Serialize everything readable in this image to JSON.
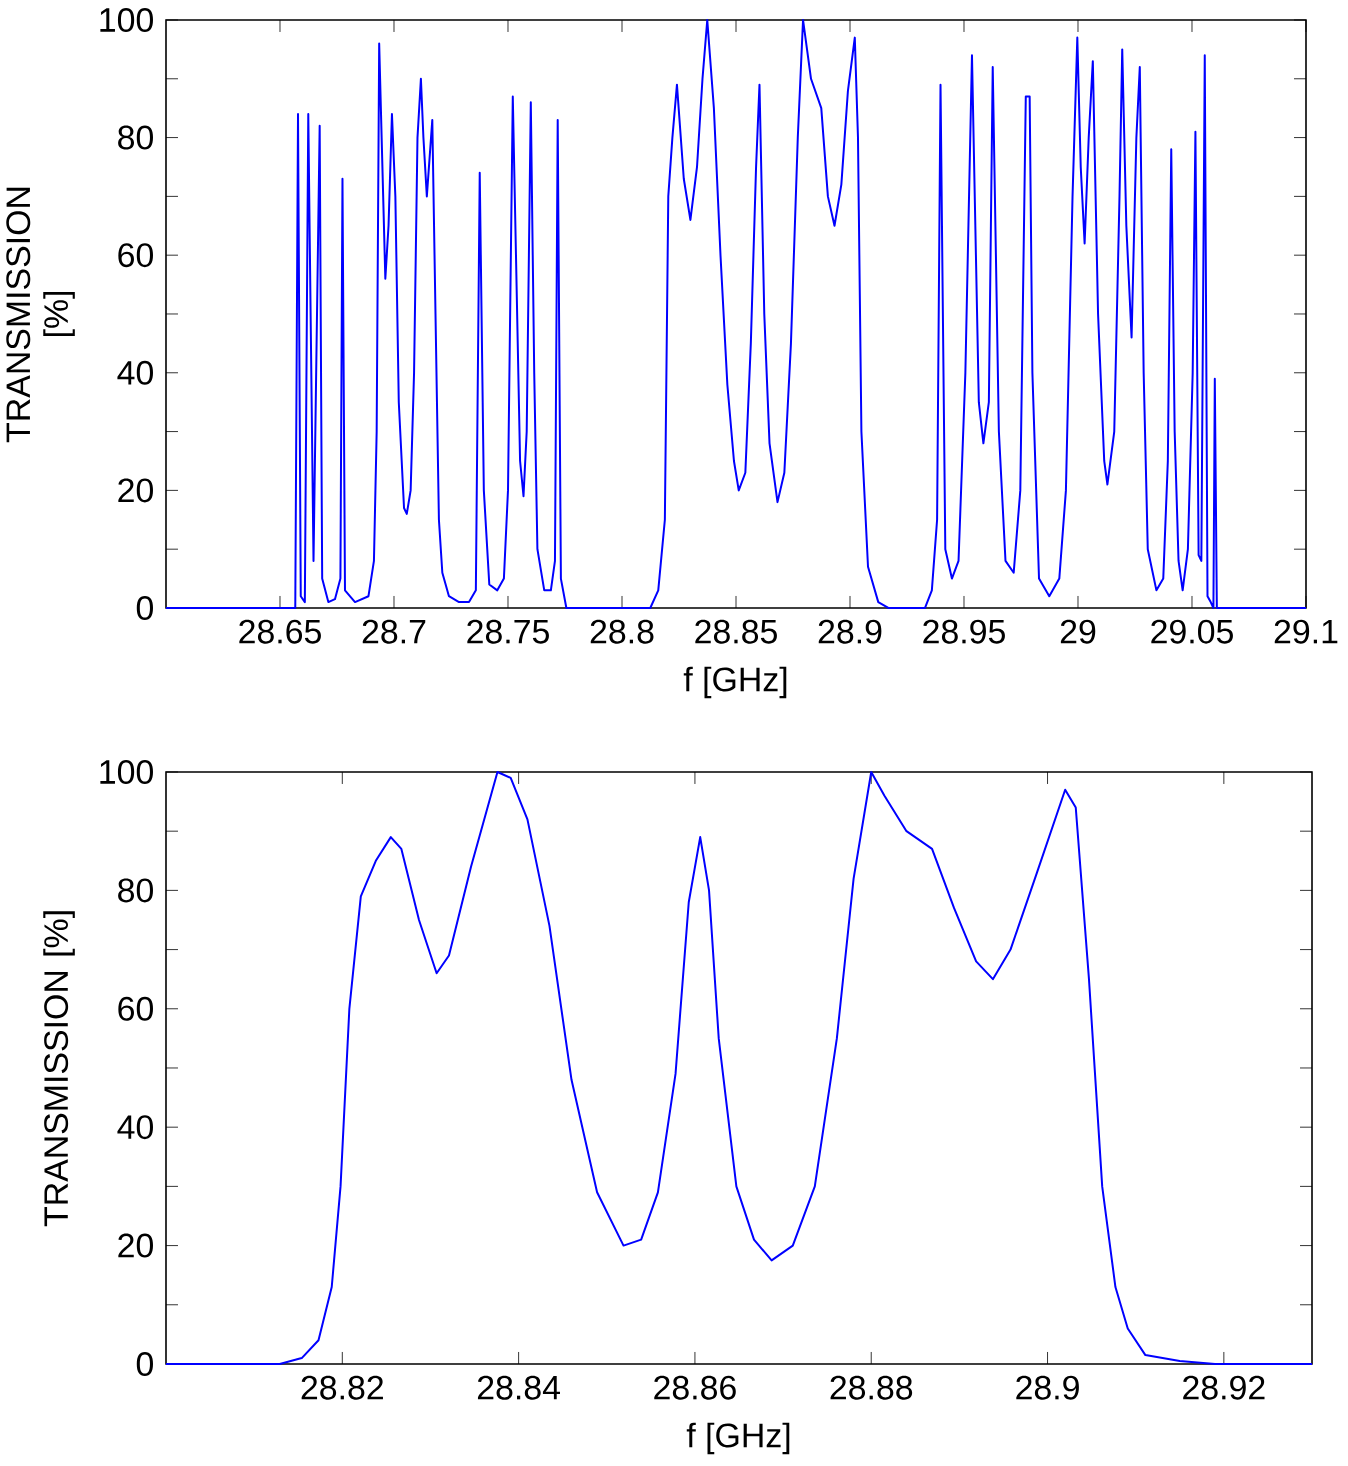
{
  "chart_data": [
    {
      "type": "line",
      "xlabel": "f [GHz]",
      "ylabel": "TRANSMISSION [%]",
      "xlim": [
        28.6,
        29.1
      ],
      "ylim": [
        0,
        100
      ],
      "xticks": [
        28.65,
        28.7,
        28.75,
        28.8,
        28.85,
        28.9,
        28.95,
        29,
        29.05,
        29.1
      ],
      "yticks": [
        0,
        {
          "value": 10,
          "label": null
        },
        20,
        {
          "value": 30,
          "label": null
        },
        40,
        {
          "value": 50,
          "label": null
        },
        60,
        {
          "value": 70,
          "label": null
        },
        80,
        {
          "value": 90,
          "label": null
        },
        100
      ],
      "marker": "none",
      "line_style": "solid",
      "grid": false,
      "x": [
        28.6,
        28.655,
        28.6567,
        28.6579,
        28.6591,
        28.6609,
        28.6624,
        28.6647,
        28.6674,
        28.6685,
        28.6712,
        28.6741,
        28.6765,
        28.6774,
        28.6785,
        28.6829,
        28.6888,
        28.6912,
        28.6924,
        28.6935,
        28.6962,
        28.6976,
        28.6991,
        28.7006,
        28.7021,
        28.7044,
        28.7056,
        28.7073,
        28.7088,
        28.7103,
        28.7118,
        28.7129,
        28.7144,
        28.7168,
        28.7182,
        28.7197,
        28.7212,
        28.7241,
        28.7285,
        28.7329,
        28.7359,
        28.7376,
        28.7394,
        28.7418,
        28.7453,
        28.7482,
        28.75,
        28.7521,
        28.7535,
        28.7553,
        28.7568,
        28.7582,
        28.76,
        28.7615,
        28.7629,
        28.7659,
        28.7688,
        28.7706,
        28.7718,
        28.7732,
        28.7756,
        28.8124,
        28.8159,
        28.8188,
        28.8203,
        28.8221,
        28.8241,
        28.8271,
        28.83,
        28.8329,
        28.8353,
        28.8374,
        28.8403,
        28.8432,
        28.8462,
        28.8491,
        28.8512,
        28.8541,
        28.8565,
        28.8588,
        28.8603,
        28.8624,
        28.8647,
        28.8682,
        28.8712,
        28.8741,
        28.8771,
        28.8794,
        28.8829,
        28.8874,
        28.8903,
        28.8932,
        28.8962,
        28.8991,
        28.9021,
        28.9035,
        28.905,
        28.9079,
        28.9124,
        28.9168,
        28.9329,
        28.9359,
        28.9382,
        28.9397,
        28.9418,
        28.9447,
        28.9476,
        28.9506,
        28.9535,
        28.9565,
        28.9585,
        28.9609,
        28.9626,
        28.9653,
        28.9682,
        28.9718,
        28.9747,
        28.9771,
        28.9788,
        28.98,
        28.9829,
        28.9874,
        28.9918,
        28.9947,
        28.9976,
        28.9997,
        29.0012,
        29.0029,
        29.0047,
        29.0065,
        29.0088,
        29.0115,
        29.0129,
        29.0159,
        29.0182,
        29.0194,
        29.0212,
        29.0235,
        29.0256,
        29.0271,
        29.0288,
        29.0306,
        29.0344,
        29.0374,
        29.0394,
        29.0409,
        29.0424,
        29.0441,
        29.0459,
        29.0482,
        29.0503,
        29.0515,
        29.0529,
        29.0541,
        29.0556,
        29.0568,
        29.0582,
        29.0594,
        29.06,
        29.0609,
        29.1
      ],
      "series": [
        {
          "color": "#0000ff",
          "values": [
            0,
            0,
            0,
            84,
            2,
            1,
            84,
            8,
            82,
            5,
            1,
            1.5,
            5,
            73,
            3,
            1,
            2,
            8,
            30,
            96,
            56,
            65,
            84,
            70,
            35,
            17,
            16,
            20,
            40,
            80,
            90,
            80,
            70,
            83,
            50,
            15,
            6,
            2,
            1,
            1,
            3,
            74,
            20,
            4,
            3,
            5,
            20,
            87,
            60,
            25,
            19,
            30,
            86,
            40,
            10,
            3,
            3,
            8,
            83,
            5,
            0,
            0,
            3,
            15,
            70,
            80,
            89,
            73,
            66,
            75,
            90,
            100,
            85,
            60,
            38,
            25,
            20,
            23,
            45,
            75,
            89,
            50,
            28,
            18,
            23,
            45,
            80,
            100,
            90,
            85,
            70,
            65,
            72,
            88,
            97,
            80,
            30,
            7,
            1,
            0,
            0,
            3,
            15,
            89,
            10,
            5,
            8,
            40,
            94,
            35,
            28,
            35,
            92,
            30,
            8,
            6,
            20,
            87,
            87,
            40,
            5,
            2,
            5,
            20,
            70,
            97,
            75,
            62,
            80,
            93,
            50,
            25,
            21,
            30,
            70,
            95,
            65,
            46,
            80,
            92,
            40,
            10,
            3,
            5,
            25,
            78,
            30,
            8,
            3,
            10,
            40,
            81,
            9,
            8,
            94,
            2,
            1,
            0,
            39,
            0,
            0
          ]
        }
      ]
    },
    {
      "type": "line",
      "xlabel": "f [GHz]",
      "ylabel": "TRANSMISSION [%]",
      "xlim": [
        28.8,
        28.93
      ],
      "ylim": [
        0,
        100
      ],
      "xticks": [
        28.82,
        28.84,
        28.86,
        28.88,
        28.9,
        28.92
      ],
      "yticks": [
        0,
        {
          "value": 10,
          "label": null
        },
        20,
        {
          "value": 30,
          "label": null
        },
        40,
        {
          "value": 50,
          "label": null
        },
        60,
        {
          "value": 70,
          "label": null
        },
        80,
        {
          "value": 90,
          "label": null
        },
        100
      ],
      "marker": "none",
      "line_style": "solid",
      "grid": false,
      "x": [
        28.8,
        28.8129,
        28.8154,
        28.8173,
        28.8188,
        28.8198,
        28.8208,
        28.8221,
        28.8238,
        28.8255,
        28.8267,
        28.8287,
        28.8307,
        28.8321,
        28.8346,
        28.8376,
        28.8391,
        28.841,
        28.8435,
        28.846,
        28.8489,
        28.8519,
        28.8539,
        28.8558,
        28.8578,
        28.8593,
        28.8606,
        28.8616,
        28.8627,
        28.8647,
        28.8667,
        28.8687,
        28.8711,
        28.8736,
        28.8761,
        28.878,
        28.88,
        28.8815,
        28.884,
        28.8869,
        28.8894,
        28.8919,
        28.8938,
        28.8958,
        28.8988,
        28.902,
        28.9032,
        28.9047,
        28.9062,
        28.9077,
        28.9091,
        28.9111,
        28.915,
        28.919,
        28.93
      ],
      "series": [
        {
          "color": "#0000ff",
          "values": [
            0,
            0,
            1,
            4,
            13,
            30,
            60,
            79,
            85,
            89,
            87,
            75,
            66,
            69,
            84,
            100,
            99,
            92,
            74,
            48,
            29,
            20,
            21,
            29,
            49,
            78,
            89,
            80,
            55,
            30,
            21,
            17.5,
            20,
            30,
            55,
            82,
            100,
            96,
            90,
            87,
            77,
            68,
            65,
            70,
            83,
            97,
            94,
            65,
            30,
            13,
            6,
            1.5,
            0.5,
            0,
            0
          ]
        }
      ]
    }
  ]
}
